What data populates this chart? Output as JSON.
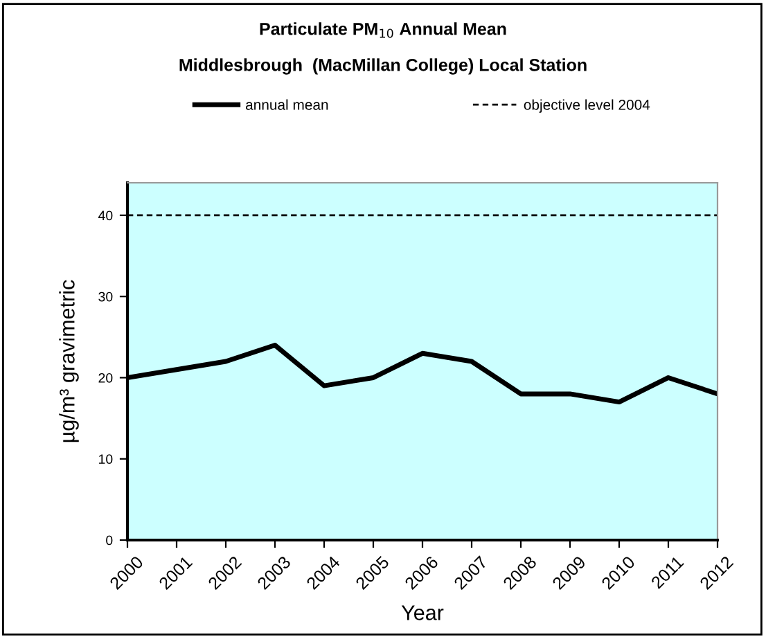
{
  "chart_data": {
    "type": "line",
    "title": "Particulate PM$_{10}$ Annual Mean",
    "subtitle": "Middlesbrough  (MacMillan College) Local Station",
    "xlabel": "Year",
    "ylabel": "µg/m³ gravimetric",
    "x": [
      2000,
      2001,
      2002,
      2003,
      2004,
      2005,
      2006,
      2007,
      2008,
      2009,
      2010,
      2011,
      2012
    ],
    "series": [
      {
        "name": "annual mean",
        "color": "#000000",
        "values": [
          20,
          21,
          22,
          24,
          19,
          20,
          23,
          22,
          18,
          18,
          17,
          20,
          18
        ]
      }
    ],
    "ref_lines": [
      {
        "axis": "y",
        "value": 40,
        "label": "objective level 2004",
        "color": "#000000",
        "line_style": "dashed"
      }
    ],
    "xlim": [
      2000,
      2012
    ],
    "xticks": [
      2000,
      2001,
      2002,
      2003,
      2004,
      2005,
      2006,
      2007,
      2008,
      2009,
      2010,
      2011,
      2012
    ],
    "ylim": [
      0,
      44
    ],
    "yticks": [
      0,
      10,
      20,
      30,
      40
    ],
    "grid": false,
    "legend": "top",
    "marker": "none",
    "line_style": "solid"
  }
}
